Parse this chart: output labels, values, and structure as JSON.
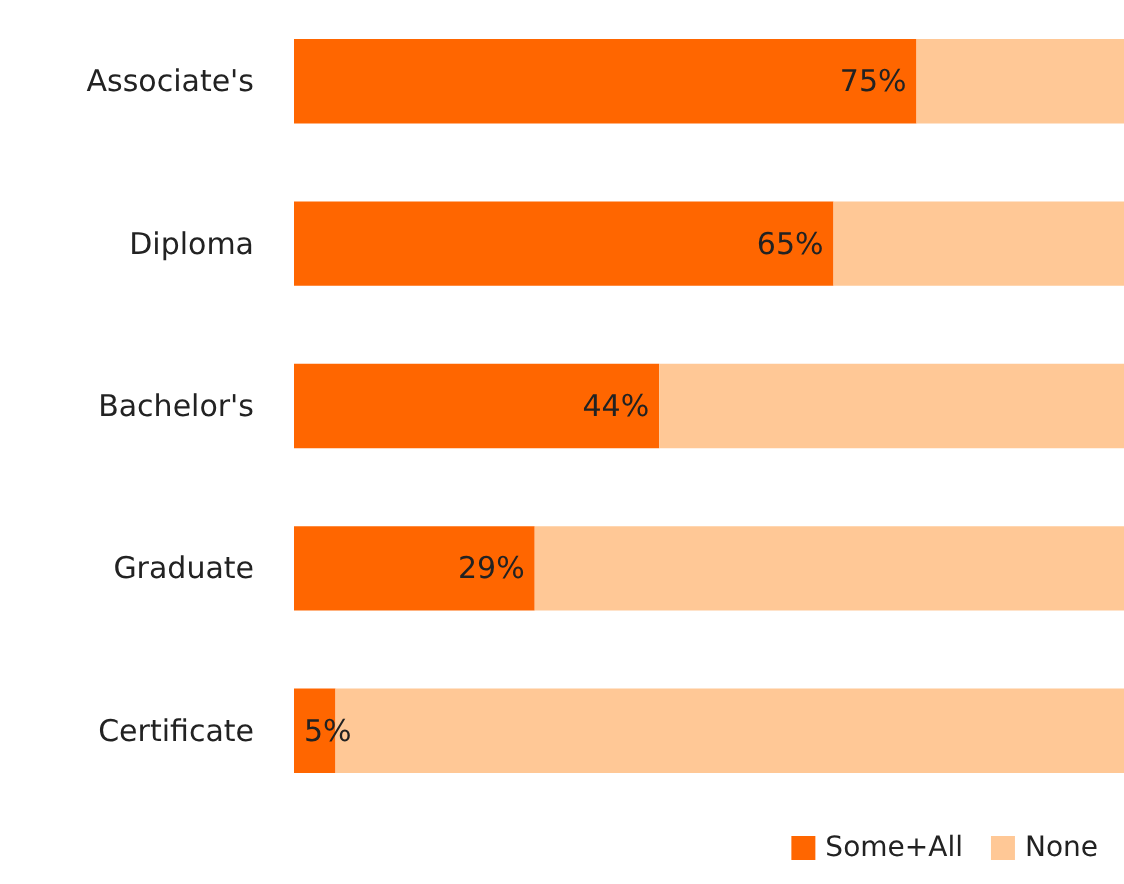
{
  "chart_data": {
    "type": "bar",
    "orientation": "horizontal",
    "stacked": true,
    "categories": [
      "Associate's",
      "Diploma",
      "Bachelor's",
      "Graduate",
      "Certificate"
    ],
    "series": [
      {
        "name": "Some+All",
        "color": "#ff6600",
        "values": [
          75,
          65,
          44,
          29,
          5
        ],
        "value_labels": [
          "75%",
          "65%",
          "44%",
          "29%",
          "5%"
        ]
      },
      {
        "name": "None",
        "color": "#ffc896",
        "values": [
          25,
          35,
          56,
          71,
          95
        ]
      }
    ],
    "xlim": [
      0,
      100
    ],
    "tick_labels": "y",
    "grid": false,
    "legend": "bottom right"
  }
}
